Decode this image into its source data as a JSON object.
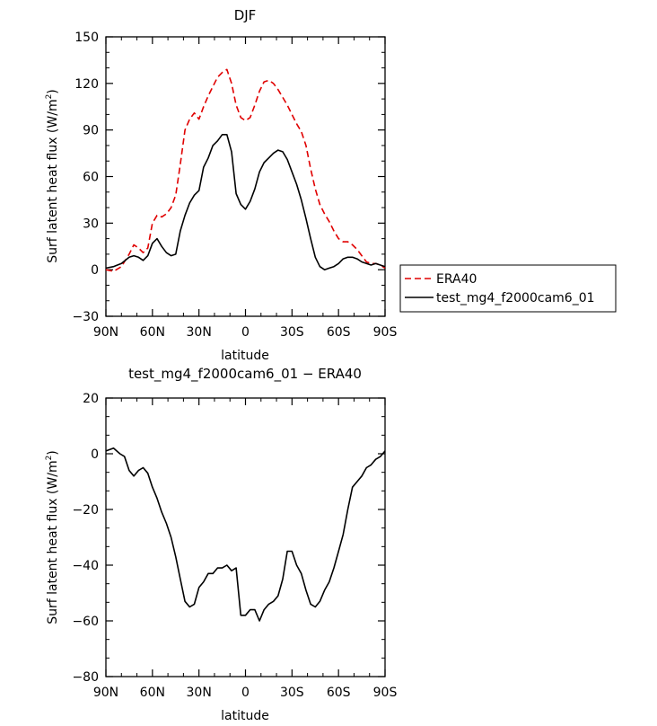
{
  "chart_data": [
    {
      "type": "line",
      "title": "DJF",
      "xlabel": "latitude",
      "ylabel": "Surf latent heat flux (W/m",
      "ylabel_sup": "2",
      "ylabel_end": ")",
      "xlim": [
        90,
        -90
      ],
      "ylim": [
        -30,
        150
      ],
      "x_ticks": [
        90,
        60,
        30,
        0,
        -30,
        -60,
        -90
      ],
      "x_tick_labels": [
        "90N",
        "60N",
        "30N",
        "0",
        "30S",
        "60S",
        "90S"
      ],
      "y_ticks": [
        -30,
        0,
        30,
        60,
        90,
        120,
        150
      ],
      "y_tick_labels": [
        "−30",
        "0",
        "30",
        "60",
        "90",
        "120",
        "150"
      ],
      "legend": {
        "placement": "right",
        "items": [
          "ERA40",
          "test_mg4_f2000cam6_01"
        ]
      },
      "series": [
        {
          "name": "ERA40",
          "color": "#e00000",
          "dash": "dashed",
          "x": [
            90,
            85,
            80,
            75,
            72,
            69,
            66,
            63,
            60,
            57,
            54,
            51,
            48,
            45,
            42,
            39,
            36,
            33,
            30,
            27,
            24,
            21,
            18,
            15,
            12,
            9,
            6,
            3,
            0,
            -3,
            -6,
            -9,
            -12,
            -15,
            -18,
            -21,
            -24,
            -27,
            -30,
            -33,
            -36,
            -39,
            -42,
            -45,
            -48,
            -51,
            -54,
            -57,
            -60,
            -63,
            -66,
            -69,
            -72,
            -75,
            -78,
            -81,
            -84,
            -87,
            -90
          ],
          "values": [
            0,
            -1,
            2,
            10,
            16,
            14,
            11,
            14,
            30,
            35,
            34,
            36,
            40,
            48,
            68,
            90,
            97,
            101,
            97,
            105,
            112,
            118,
            124,
            127,
            129,
            120,
            106,
            98,
            96,
            98,
            106,
            115,
            121,
            122,
            120,
            116,
            111,
            106,
            100,
            94,
            89,
            80,
            65,
            52,
            42,
            36,
            31,
            25,
            20,
            18,
            18,
            16,
            13,
            9,
            5,
            4,
            4,
            3,
            1
          ]
        },
        {
          "name": "test_mg4_f2000cam6_01",
          "color": "#000000",
          "dash": "solid",
          "x": [
            90,
            85,
            80,
            75,
            72,
            69,
            66,
            63,
            60,
            57,
            54,
            51,
            48,
            45,
            42,
            39,
            36,
            33,
            30,
            27,
            24,
            21,
            18,
            15,
            12,
            9,
            6,
            3,
            0,
            -3,
            -6,
            -9,
            -12,
            -15,
            -18,
            -21,
            -24,
            -27,
            -30,
            -33,
            -36,
            -39,
            -42,
            -45,
            -48,
            -51,
            -54,
            -57,
            -60,
            -63,
            -66,
            -69,
            -72,
            -75,
            -78,
            -81,
            -84,
            -87,
            -90
          ],
          "values": [
            1,
            2,
            4,
            8,
            9,
            8,
            6,
            9,
            17,
            20,
            15,
            11,
            9,
            10,
            25,
            35,
            43,
            48,
            51,
            66,
            72,
            80,
            83,
            87,
            87,
            76,
            49,
            42,
            39,
            44,
            52,
            63,
            69,
            72,
            75,
            77,
            76,
            71,
            63,
            55,
            45,
            33,
            20,
            8,
            2,
            0,
            1,
            2,
            4,
            7,
            8,
            8,
            7,
            5,
            4,
            3,
            4,
            3,
            2
          ]
        }
      ]
    },
    {
      "type": "line",
      "title": "test_mg4_f2000cam6_01  −  ERA40",
      "xlabel": "latitude",
      "ylabel": "Surf latent heat flux (W/m",
      "ylabel_sup": "2",
      "ylabel_end": ")",
      "xlim": [
        90,
        -90
      ],
      "ylim": [
        -80,
        20
      ],
      "x_ticks": [
        90,
        60,
        30,
        0,
        -30,
        -60,
        -90
      ],
      "x_tick_labels": [
        "90N",
        "60N",
        "30N",
        "0",
        "30S",
        "60S",
        "90S"
      ],
      "y_ticks": [
        -80,
        -60,
        -40,
        -20,
        0,
        20
      ],
      "y_tick_labels": [
        "−80",
        "−60",
        "−40",
        "−20",
        "0",
        "20"
      ],
      "series": [
        {
          "name": "test_mg4_f2000cam6_01 − ERA40",
          "color": "#000000",
          "dash": "solid",
          "x": [
            90,
            85,
            81,
            78,
            75,
            72,
            69,
            66,
            63,
            60,
            57,
            54,
            51,
            48,
            45,
            42,
            39,
            36,
            33,
            30,
            27,
            24,
            21,
            18,
            15,
            12,
            9,
            6,
            3,
            0,
            -3,
            -6,
            -9,
            -12,
            -15,
            -18,
            -21,
            -24,
            -27,
            -30,
            -33,
            -36,
            -39,
            -42,
            -45,
            -48,
            -51,
            -54,
            -57,
            -60,
            -63,
            -66,
            -69,
            -72,
            -75,
            -78,
            -81,
            -84,
            -87,
            -90
          ],
          "values": [
            1,
            2,
            0,
            -1,
            -6,
            -8,
            -6,
            -5,
            -7,
            -12,
            -16,
            -21,
            -25,
            -30,
            -37,
            -45,
            -53,
            -55,
            -54,
            -48,
            -46,
            -43,
            -43,
            -41,
            -41,
            -40,
            -42,
            -41,
            -58,
            -58,
            -56,
            -56,
            -60,
            -56,
            -54,
            -53,
            -51,
            -45,
            -35,
            -35,
            -40,
            -43,
            -49,
            -54,
            -55,
            -53,
            -49,
            -46,
            -41,
            -35,
            -29,
            -20,
            -12,
            -10,
            -8,
            -5,
            -4,
            -2,
            -1,
            1
          ]
        }
      ]
    }
  ]
}
